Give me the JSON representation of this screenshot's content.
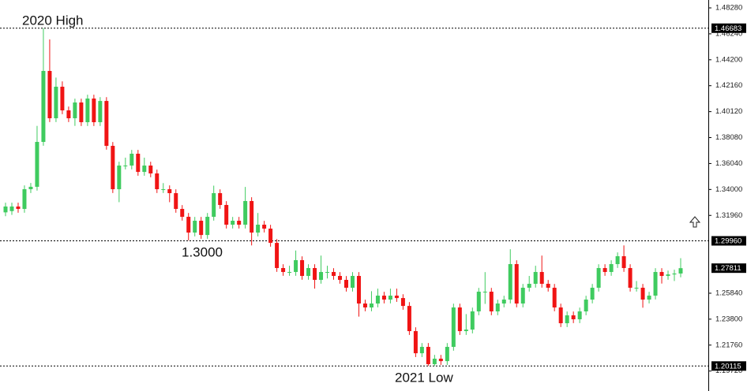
{
  "chart_data": {
    "type": "candlestick",
    "ylim": [
      1.489,
      1.1815
    ],
    "yticks": [
      {
        "value": 1.4828,
        "label": "1.48280"
      },
      {
        "value": 1.4624,
        "label": "1.46240"
      },
      {
        "value": 1.442,
        "label": "1.44200"
      },
      {
        "value": 1.4216,
        "label": "1.42160"
      },
      {
        "value": 1.4012,
        "label": "1.40120"
      },
      {
        "value": 1.3808,
        "label": "1.38080"
      },
      {
        "value": 1.3604,
        "label": "1.36040"
      },
      {
        "value": 1.34,
        "label": "1.34000"
      },
      {
        "value": 1.3196,
        "label": "1.31960"
      },
      {
        "value": 1.2584,
        "label": "1.25840"
      },
      {
        "value": 1.238,
        "label": "1.23800"
      },
      {
        "value": 1.2176,
        "label": "1.21760"
      },
      {
        "value": 1.1972,
        "label": "1.19720"
      }
    ],
    "hlines": [
      1.46683,
      {
        "value": 1.2996,
        "label": "1.29960"
      },
      1.20115
    ],
    "last_price": 1.27811,
    "annotations": [
      "2020 High",
      "1.3000",
      "2021 Low"
    ],
    "up_color": "#3fcb5f",
    "down_color": "#f01414",
    "open": [
      1.322,
      1.323,
      1.3266,
      1.3247,
      1.3402,
      1.3421,
      1.3774,
      1.4332,
      1.396,
      1.4208,
      1.4022,
      1.396,
      1.4084,
      1.3929,
      1.4115,
      1.3929,
      1.4096,
      1.3743,
      1.3402,
      1.3588,
      1.3588,
      1.3681,
      1.3538,
      1.3588,
      1.3526,
      1.3402,
      1.3402,
      1.3371,
      1.3247,
      1.3185,
      1.3061,
      1.3154,
      1.3042,
      1.3185,
      1.3371,
      1.3278,
      1.3123,
      1.3154,
      1.3123,
      1.3309,
      1.3061,
      1.3123,
      1.3092,
      1.298,
      1.2782,
      1.2751,
      1.2751,
      1.2844,
      1.272,
      1.2782,
      1.2689,
      1.2751,
      1.2751,
      1.272,
      1.2689,
      1.2627,
      1.272,
      1.2503,
      1.2472,
      1.2503,
      1.2565,
      1.2534,
      1.2565,
      1.2546,
      1.2484,
      1.2286,
      1.2112,
      1.2162,
      1.2026,
      1.2069,
      1.205,
      1.2162,
      1.2472,
      1.2286,
      1.2298,
      1.2441,
      1.2596,
      1.2596,
      1.2441,
      1.2503,
      1.2534,
      1.2813,
      1.2503,
      1.2627,
      1.2658,
      1.2751,
      1.2658,
      1.2627,
      1.2472,
      1.2348,
      1.241,
      1.2379,
      1.2441,
      1.2534,
      1.2627,
      1.2782,
      1.2751,
      1.2813,
      1.2875,
      1.2782,
      1.2627,
      1.2627,
      1.2534,
      1.2565,
      1.2751,
      1.272,
      1.2732,
      1.2739
    ],
    "high": [
      1.3296,
      1.3296,
      1.3296,
      1.3432,
      1.3451,
      1.39,
      1.4668,
      1.458,
      1.428,
      1.425,
      1.4052,
      1.4114,
      1.4114,
      1.4145,
      1.4145,
      1.4126,
      1.4126,
      1.3773,
      1.3618,
      1.365,
      1.3711,
      1.3711,
      1.365,
      1.3618,
      1.3556,
      1.345,
      1.3432,
      1.3401,
      1.3277,
      1.3215,
      1.3184,
      1.3184,
      1.3215,
      1.343,
      1.3401,
      1.3308,
      1.3184,
      1.3184,
      1.342,
      1.3339,
      1.3215,
      1.3153,
      1.3122,
      1.301,
      1.2812,
      1.28,
      1.292,
      1.2874,
      1.2812,
      1.2812,
      1.288,
      1.28,
      1.2781,
      1.275,
      1.2719,
      1.275,
      1.275,
      1.2533,
      1.26,
      1.262,
      1.2595,
      1.262,
      1.262,
      1.2576,
      1.2514,
      1.2316,
      1.2192,
      1.2192,
      1.2099,
      1.2099,
      1.2192,
      1.2502,
      1.2502,
      1.242,
      1.2471,
      1.2626,
      1.275,
      1.2626,
      1.2533,
      1.2564,
      1.293,
      1.2843,
      1.2657,
      1.272,
      1.28,
      1.288,
      1.2688,
      1.2657,
      1.2502,
      1.244,
      1.244,
      1.2471,
      1.2564,
      1.2657,
      1.2812,
      1.2812,
      1.2843,
      1.2905,
      1.296,
      1.2812,
      1.268,
      1.2657,
      1.2595,
      1.2781,
      1.2781,
      1.2762,
      1.2769,
      1.286
    ],
    "low": [
      1.319,
      1.32,
      1.3217,
      1.3217,
      1.3372,
      1.3391,
      1.3744,
      1.393,
      1.393,
      1.3992,
      1.393,
      1.39,
      1.3899,
      1.3899,
      1.3899,
      1.3899,
      1.3713,
      1.3372,
      1.33,
      1.3558,
      1.3558,
      1.3508,
      1.3508,
      1.3496,
      1.3372,
      1.3372,
      1.33,
      1.3217,
      1.3155,
      1.3,
      1.3031,
      1.3012,
      1.3012,
      1.3155,
      1.3248,
      1.3093,
      1.3093,
      1.3093,
      1.3093,
      1.296,
      1.3031,
      1.3062,
      1.295,
      1.2752,
      1.2721,
      1.2721,
      1.2721,
      1.269,
      1.269,
      1.262,
      1.2659,
      1.27,
      1.269,
      1.2659,
      1.2597,
      1.2597,
      1.24,
      1.2442,
      1.2442,
      1.2473,
      1.2504,
      1.2504,
      1.2516,
      1.2454,
      1.2256,
      1.2082,
      1.2082,
      1.2012,
      1.2012,
      1.202,
      1.202,
      1.2132,
      1.2256,
      1.2256,
      1.2268,
      1.2411,
      1.25,
      1.2411,
      1.2411,
      1.2473,
      1.2504,
      1.2473,
      1.2473,
      1.2597,
      1.2628,
      1.2628,
      1.2597,
      1.2442,
      1.2318,
      1.2318,
      1.2349,
      1.2349,
      1.2411,
      1.2504,
      1.2597,
      1.2721,
      1.2721,
      1.2783,
      1.2752,
      1.2597,
      1.2597,
      1.247,
      1.2504,
      1.2535,
      1.266,
      1.269,
      1.268,
      1.2709
    ],
    "close": [
      1.3266,
      1.3266,
      1.3247,
      1.3402,
      1.3421,
      1.3774,
      1.4332,
      1.396,
      1.4208,
      1.4022,
      1.396,
      1.4084,
      1.3929,
      1.4115,
      1.3929,
      1.4096,
      1.3743,
      1.3402,
      1.3588,
      1.3588,
      1.3681,
      1.3538,
      1.3588,
      1.3526,
      1.3402,
      1.3402,
      1.3371,
      1.3247,
      1.3185,
      1.3061,
      1.3154,
      1.3042,
      1.3185,
      1.3371,
      1.3278,
      1.3123,
      1.3154,
      1.3123,
      1.3309,
      1.3061,
      1.3123,
      1.3092,
      1.298,
      1.2782,
      1.2751,
      1.2751,
      1.2844,
      1.272,
      1.2782,
      1.2689,
      1.2751,
      1.2751,
      1.272,
      1.2689,
      1.2627,
      1.272,
      1.2503,
      1.2472,
      1.2503,
      1.2565,
      1.2534,
      1.2565,
      1.2546,
      1.2484,
      1.2286,
      1.2112,
      1.2162,
      1.2026,
      1.2069,
      1.205,
      1.2162,
      1.2472,
      1.2286,
      1.2298,
      1.2441,
      1.2596,
      1.2596,
      1.2441,
      1.2503,
      1.2534,
      1.2813,
      1.2503,
      1.2627,
      1.2658,
      1.2751,
      1.2658,
      1.2627,
      1.2472,
      1.2348,
      1.241,
      1.2379,
      1.2441,
      1.2534,
      1.2627,
      1.2782,
      1.2751,
      1.2813,
      1.2875,
      1.2782,
      1.2627,
      1.2627,
      1.2534,
      1.2565,
      1.2751,
      1.272,
      1.2732,
      1.2739,
      1.2781
    ]
  }
}
